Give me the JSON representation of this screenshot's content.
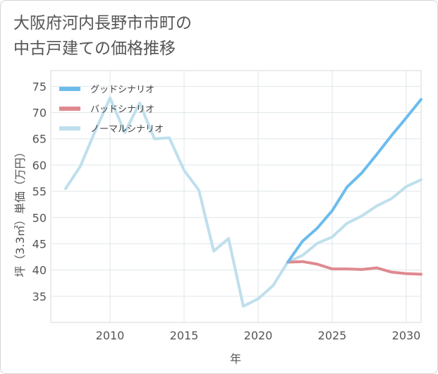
{
  "title": {
    "line1": "大阪府河内長野市市町の",
    "line2": "中古戸建ての価格推移"
  },
  "chart_data": {
    "type": "line",
    "title": "大阪府河内長野市市町の中古戸建ての価格推移",
    "xlabel": "年",
    "ylabel": "坪（3.3㎡）単価（万円）",
    "xlim": [
      2006,
      2031
    ],
    "ylim": [
      30,
      78
    ],
    "x_ticks": [
      2010,
      2015,
      2020,
      2025,
      2030
    ],
    "y_ticks": [
      35,
      40,
      45,
      50,
      55,
      60,
      65,
      70,
      75
    ],
    "grid": true,
    "legend_position": "top-left",
    "series": [
      {
        "name": "グッドシナリオ",
        "color": "#6cbcec",
        "x": [
          2022,
          2023,
          2024,
          2025,
          2026,
          2027,
          2028,
          2029,
          2030,
          2031
        ],
        "y": [
          41.5,
          45.5,
          48.0,
          51.3,
          55.8,
          58.5,
          62.0,
          65.6,
          69.0,
          72.5
        ]
      },
      {
        "name": "バッドシナリオ",
        "color": "#df8a8f",
        "x": [
          2022,
          2023,
          2024,
          2025,
          2026,
          2027,
          2028,
          2029,
          2030,
          2031
        ],
        "y": [
          41.5,
          41.6,
          41.1,
          40.2,
          40.2,
          40.1,
          40.4,
          39.6,
          39.3,
          39.2
        ]
      },
      {
        "name": "ノーマルシナリオ",
        "color": "#bfdfec",
        "x": [
          2007,
          2008,
          2009,
          2010,
          2011,
          2012,
          2013,
          2014,
          2015,
          2016,
          2017,
          2018,
          2019,
          2020,
          2021,
          2022,
          2023,
          2024,
          2025,
          2026,
          2027,
          2028,
          2029,
          2030,
          2031
        ],
        "y": [
          55.5,
          59.8,
          66.5,
          72.8,
          66.2,
          71.8,
          65.0,
          65.2,
          59.0,
          55.2,
          43.6,
          46.0,
          33.1,
          34.5,
          37.0,
          41.5,
          42.8,
          45.1,
          46.3,
          48.9,
          50.3,
          52.2,
          53.6,
          55.9,
          57.2
        ]
      }
    ]
  }
}
